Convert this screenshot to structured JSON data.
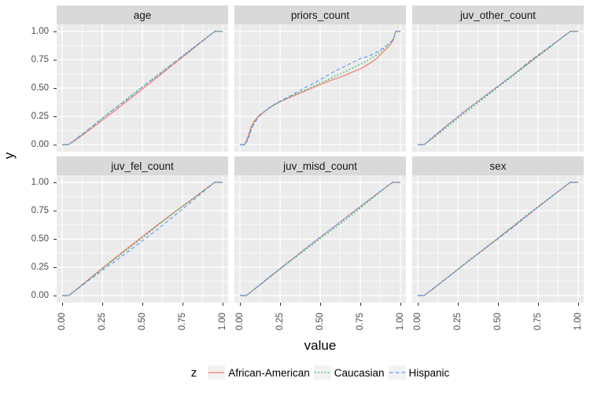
{
  "figure": {
    "y_axis_title": "y",
    "x_axis_title": "value",
    "legend": {
      "title": "z",
      "entries": [
        {
          "label": "African-American",
          "color": "#F8766D",
          "dash": "solid"
        },
        {
          "label": "Caucasian",
          "color": "#00BA38",
          "dash": "dotted"
        },
        {
          "label": "Hispanic",
          "color": "#619CFF",
          "dash": "dashed"
        }
      ]
    }
  },
  "axes": {
    "x_tick_labels": [
      "0.00",
      "0.25",
      "0.50",
      "0.75",
      "1.00"
    ],
    "y_tick_labels": [
      "1.00",
      "0.75",
      "0.50",
      "0.25",
      "0.00"
    ],
    "x_tick_values": [
      0,
      0.25,
      0.5,
      0.75,
      1
    ],
    "y_tick_values": [
      1,
      0.75,
      0.5,
      0.25,
      0
    ]
  },
  "colors": {
    "panel_bg": "#EBEBEB",
    "strip_bg": "#D9D9D9",
    "grid": "#FFFFFF",
    "tick_mark": "#333333",
    "tick_label": "#4D4D4D",
    "legend_key_bg": "#F2F2F2",
    "series_red": "#F8766D",
    "series_green": "#00BA38",
    "series_blue": "#619CFF"
  },
  "chart_data": {
    "type": "line",
    "title": "",
    "xlabel": "value",
    "ylabel": "y",
    "xlim": [
      0,
      1
    ],
    "ylim": [
      0,
      1
    ],
    "grid": true,
    "legend_position": "bottom",
    "facet_layout": {
      "rows": 2,
      "cols": 3
    },
    "series_styles": [
      {
        "name": "African-American",
        "color": "#F8766D",
        "dash": "solid"
      },
      {
        "name": "Caucasian",
        "color": "#00BA38",
        "dash": "dotted"
      },
      {
        "name": "Hispanic",
        "color": "#619CFF",
        "dash": "dashed"
      }
    ],
    "facets": [
      {
        "label": "age",
        "x": [
          0,
          0.04,
          0.1,
          0.2,
          0.3,
          0.4,
          0.5,
          0.6,
          0.7,
          0.8,
          0.9,
          0.95,
          1
        ],
        "series": {
          "African-American": [
            0,
            0,
            0.056,
            0.161,
            0.27,
            0.38,
            0.491,
            0.603,
            0.716,
            0.829,
            0.943,
            1,
            1
          ],
          "Caucasian": [
            0,
            0,
            0.064,
            0.177,
            0.29,
            0.4,
            0.511,
            0.621,
            0.73,
            0.838,
            0.947,
            1,
            1
          ],
          "Hispanic": [
            0,
            0,
            0.065,
            0.173,
            0.288,
            0.393,
            0.508,
            0.615,
            0.728,
            0.836,
            0.945,
            1,
            1
          ]
        }
      },
      {
        "label": "priors_count",
        "x": [
          0,
          0.03,
          0.05,
          0.07,
          0.09,
          0.12,
          0.16,
          0.2,
          0.25,
          0.3,
          0.35,
          0.4,
          0.45,
          0.5,
          0.55,
          0.6,
          0.65,
          0.7,
          0.75,
          0.8,
          0.85,
          0.9,
          0.93,
          0.955,
          0.97,
          1
        ],
        "series": {
          "African-American": [
            0,
            0,
            0.07,
            0.16,
            0.21,
            0.26,
            0.3,
            0.34,
            0.38,
            0.41,
            0.44,
            0.47,
            0.5,
            0.53,
            0.56,
            0.585,
            0.61,
            0.64,
            0.67,
            0.71,
            0.76,
            0.83,
            0.87,
            0.92,
            1,
            1
          ],
          "Caucasian": [
            0,
            0,
            0.05,
            0.14,
            0.2,
            0.25,
            0.3,
            0.34,
            0.38,
            0.415,
            0.45,
            0.48,
            0.51,
            0.545,
            0.575,
            0.61,
            0.64,
            0.675,
            0.71,
            0.745,
            0.79,
            0.85,
            0.89,
            0.93,
            1,
            1
          ],
          "Hispanic": [
            0,
            0,
            0.04,
            0.13,
            0.19,
            0.25,
            0.3,
            0.345,
            0.385,
            0.42,
            0.46,
            0.5,
            0.535,
            0.575,
            0.615,
            0.655,
            0.69,
            0.725,
            0.76,
            0.78,
            0.815,
            0.86,
            0.895,
            0.93,
            1,
            1
          ]
        }
      },
      {
        "label": "juv_other_count",
        "x": [
          0,
          0.04,
          0.1,
          0.2,
          0.3,
          0.4,
          0.5,
          0.6,
          0.7,
          0.8,
          0.9,
          0.95,
          1
        ],
        "series": {
          "African-American": [
            0,
            0,
            0.071,
            0.189,
            0.302,
            0.41,
            0.517,
            0.623,
            0.732,
            0.838,
            0.947,
            1,
            1
          ],
          "Caucasian": [
            0,
            0,
            0.063,
            0.175,
            0.286,
            0.396,
            0.507,
            0.615,
            0.726,
            0.834,
            0.945,
            1,
            1
          ],
          "Hispanic": [
            0,
            0,
            0.074,
            0.191,
            0.304,
            0.41,
            0.515,
            0.623,
            0.74,
            0.844,
            0.947,
            1,
            1
          ]
        }
      },
      {
        "label": "juv_fel_count",
        "x": [
          0,
          0.04,
          0.1,
          0.2,
          0.3,
          0.4,
          0.5,
          0.6,
          0.7,
          0.8,
          0.9,
          0.95,
          1
        ],
        "series": {
          "African-American": [
            0,
            0,
            0.067,
            0.183,
            0.298,
            0.41,
            0.521,
            0.629,
            0.736,
            0.84,
            0.947,
            1,
            1
          ],
          "Caucasian": [
            0,
            0,
            0.064,
            0.177,
            0.29,
            0.4,
            0.509,
            0.625,
            0.736,
            0.84,
            0.947,
            1,
            1
          ],
          "Hispanic": [
            0,
            0,
            0.063,
            0.169,
            0.272,
            0.376,
            0.483,
            0.591,
            0.706,
            0.822,
            0.941,
            1,
            1
          ]
        }
      },
      {
        "label": "juv_misd_count",
        "x": [
          0,
          0.04,
          0.1,
          0.2,
          0.3,
          0.4,
          0.5,
          0.6,
          0.7,
          0.8,
          0.9,
          0.95,
          1
        ],
        "series": {
          "African-American": [
            0,
            0,
            0.067,
            0.181,
            0.294,
            0.404,
            0.515,
            0.623,
            0.732,
            0.84,
            0.947,
            1,
            1
          ],
          "Caucasian": [
            0,
            0,
            0.065,
            0.177,
            0.288,
            0.396,
            0.503,
            0.607,
            0.716,
            0.83,
            0.945,
            1,
            1
          ],
          "Hispanic": [
            0,
            0,
            0.069,
            0.183,
            0.29,
            0.406,
            0.515,
            0.621,
            0.734,
            0.84,
            0.947,
            1,
            1
          ]
        }
      },
      {
        "label": "sex",
        "x": [
          0,
          0.04,
          0.1,
          0.2,
          0.3,
          0.4,
          0.5,
          0.6,
          0.7,
          0.8,
          0.9,
          0.95,
          1
        ],
        "series": {
          "African-American": [
            0,
            0,
            0.063,
            0.175,
            0.286,
            0.396,
            0.505,
            0.615,
            0.726,
            0.836,
            0.945,
            1,
            1
          ],
          "Caucasian": [
            0,
            0,
            0.067,
            0.177,
            0.29,
            0.398,
            0.509,
            0.621,
            0.734,
            0.84,
            0.947,
            1,
            1
          ],
          "Hispanic": [
            0,
            0,
            0.065,
            0.173,
            0.286,
            0.394,
            0.501,
            0.609,
            0.726,
            0.838,
            0.945,
            1,
            1
          ]
        }
      }
    ]
  }
}
